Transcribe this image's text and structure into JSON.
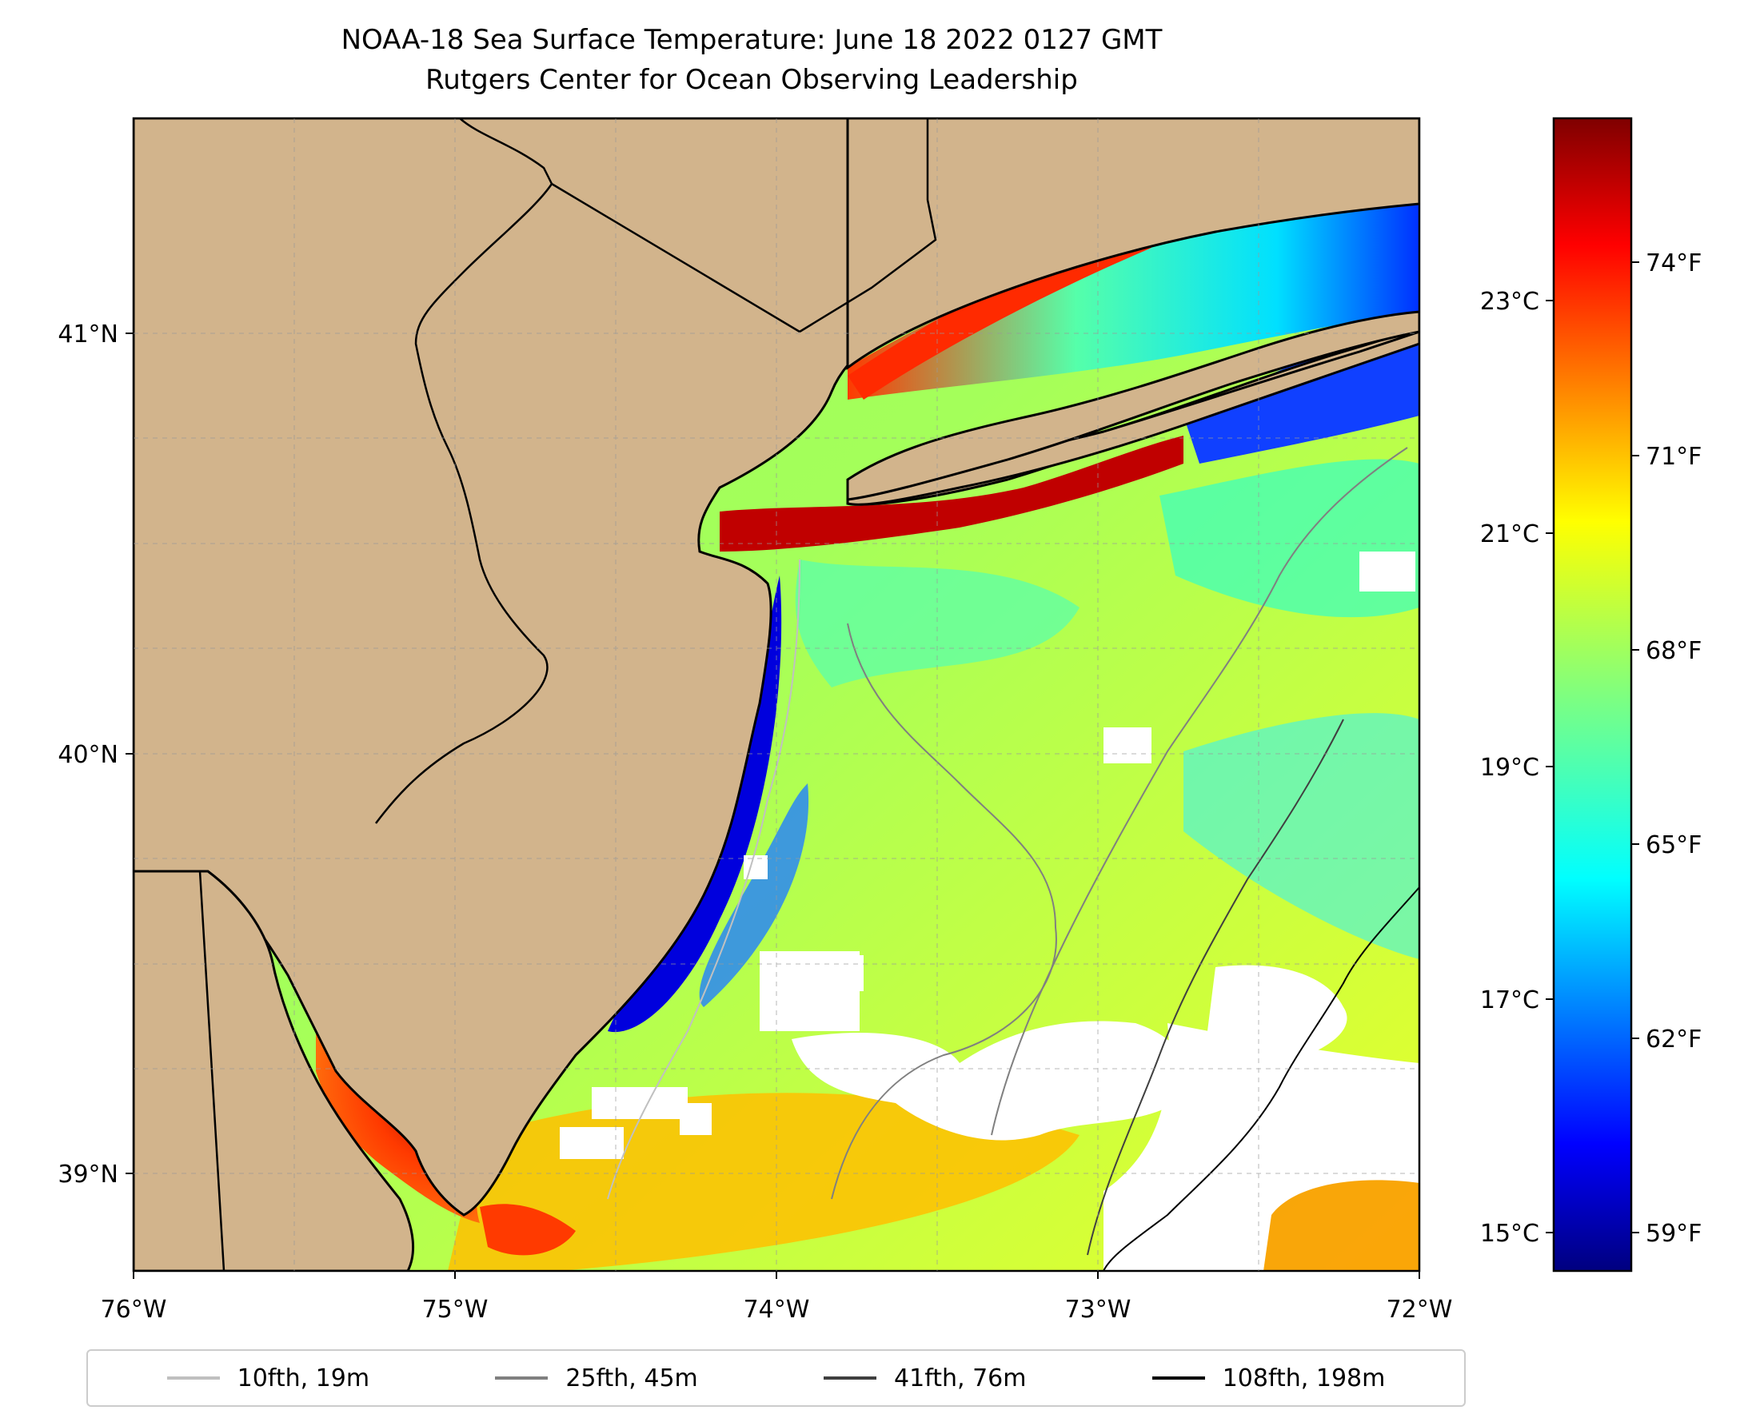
{
  "title": {
    "line1": "NOAA-18 Sea Surface Temperature: June 18 2022 0127 GMT",
    "line2": "Rutgers Center for Ocean Observing Leadership"
  },
  "axes": {
    "x_ticks": [
      "76°W",
      "75°W",
      "74°W",
      "73°W",
      "72°W"
    ],
    "y_ticks": [
      "41°N",
      "40°N",
      "39°N"
    ]
  },
  "colorbar": {
    "celsius_ticks": [
      "23°C",
      "21°C",
      "19°C",
      "17°C",
      "15°C"
    ],
    "fahrenheit_ticks": [
      "74°F",
      "71°F",
      "68°F",
      "65°F",
      "62°F",
      "59°F"
    ],
    "colors": [
      "#00007f",
      "#0000ff",
      "#007fff",
      "#00ffff",
      "#7fff7f",
      "#ffff00",
      "#ff7f00",
      "#ff0000",
      "#7f0000"
    ]
  },
  "legend": {
    "items": [
      {
        "label": "10fth, 19m",
        "color": "#c0c0c0"
      },
      {
        "label": "25fth, 45m",
        "color": "#808080"
      },
      {
        "label": "41fth, 76m",
        "color": "#404040"
      },
      {
        "label": "108fth, 198m",
        "color": "#000000"
      }
    ]
  },
  "colors": {
    "land": "#d2b48c",
    "no_data": "#ffffff"
  }
}
